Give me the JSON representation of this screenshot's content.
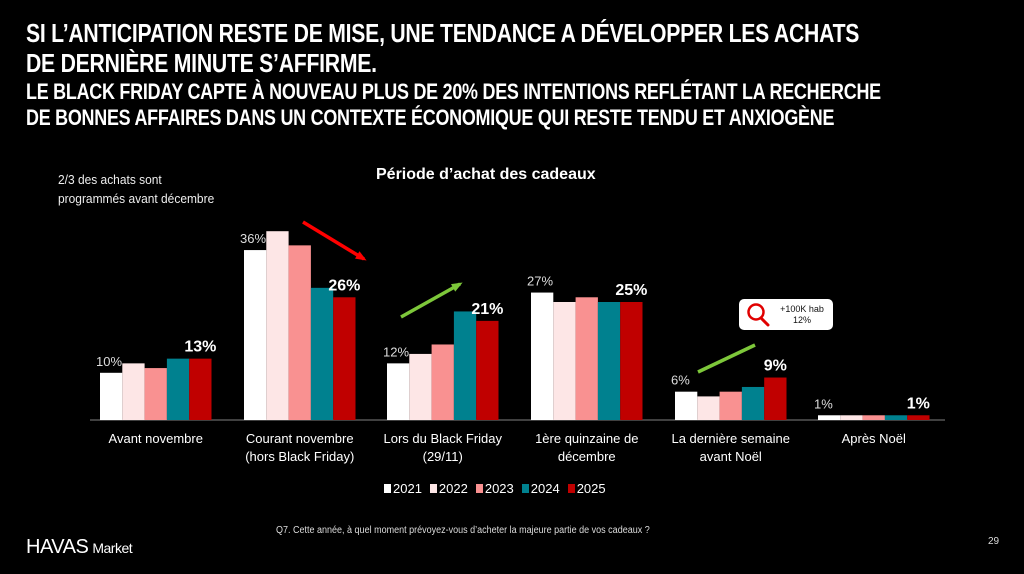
{
  "header": {
    "title_lines": [
      "SI L’ANTICIPATION RESTE DE MISE, UNE TENDANCE A DÉVELOPPER LES ACHATS",
      "DE DERNIÈRE MINUTE S’AFFIRME."
    ],
    "subtitle_lines": [
      "LE BLACK FRIDAY CAPTE À NOUVEAU PLUS DE 20% DES INTENTIONS REFLÉTANT LA RECHERCHE",
      "DE BONNES AFFAIRES DANS UN CONTEXTE ÉCONOMIQUE QUI RESTE TENDU ET ANXIOGÈNE"
    ]
  },
  "note_lines": [
    "2/3 des achats sont",
    "programmés avant décembre"
  ],
  "callout": {
    "line1": "+100K hab",
    "line2": "12%",
    "icon": "magnifier-icon"
  },
  "footer": {
    "question": "Q7. Cette année, à quel moment prévoyez-vous d’acheter la majeure partie de vos cadeaux ?",
    "logo": "HAVAS",
    "logo_suffix": "Market",
    "page_number": "29"
  },
  "chart_data": {
    "type": "bar",
    "title": "Période d’achat des cadeaux",
    "categories": [
      [
        "Avant novembre"
      ],
      [
        "Courant novembre",
        "(hors Black Friday)"
      ],
      [
        "Lors du Black Friday",
        "(29/11)"
      ],
      [
        "1ère quinzaine de",
        "décembre"
      ],
      [
        "La dernière semaine",
        "avant Noël"
      ],
      [
        "Après Noël"
      ]
    ],
    "series": [
      {
        "name": "2021",
        "color": "#ffffff",
        "values": [
          10,
          36,
          12,
          27,
          6,
          1
        ]
      },
      {
        "name": "2022",
        "color": "#fde6e6",
        "values": [
          12,
          40,
          14,
          25,
          5,
          1
        ]
      },
      {
        "name": "2023",
        "color": "#f99191",
        "values": [
          11,
          37,
          16,
          26,
          6,
          1
        ]
      },
      {
        "name": "2024",
        "color": "#00818f",
        "values": [
          13,
          28,
          23,
          25,
          7,
          1
        ]
      },
      {
        "name": "2025",
        "color": "#c00000",
        "values": [
          13,
          26,
          21,
          25,
          9,
          1
        ]
      }
    ],
    "data_labels": {
      "2021": [
        "10%",
        "36%",
        "12%",
        "27%",
        "6%",
        "1%"
      ],
      "2025": [
        "13%",
        "26%",
        "21%",
        "25%",
        "9%",
        "1%"
      ]
    },
    "trend_arrows": [
      {
        "category": "Courant novembre",
        "direction": "down",
        "color": "#ff0000"
      },
      {
        "category": "Lors du Black Friday",
        "direction": "up",
        "color": "#7dc73a"
      },
      {
        "category": "La dernière semaine",
        "direction": "up",
        "color": "#7dc73a"
      }
    ],
    "legend_position": "bottom",
    "grid": false
  }
}
